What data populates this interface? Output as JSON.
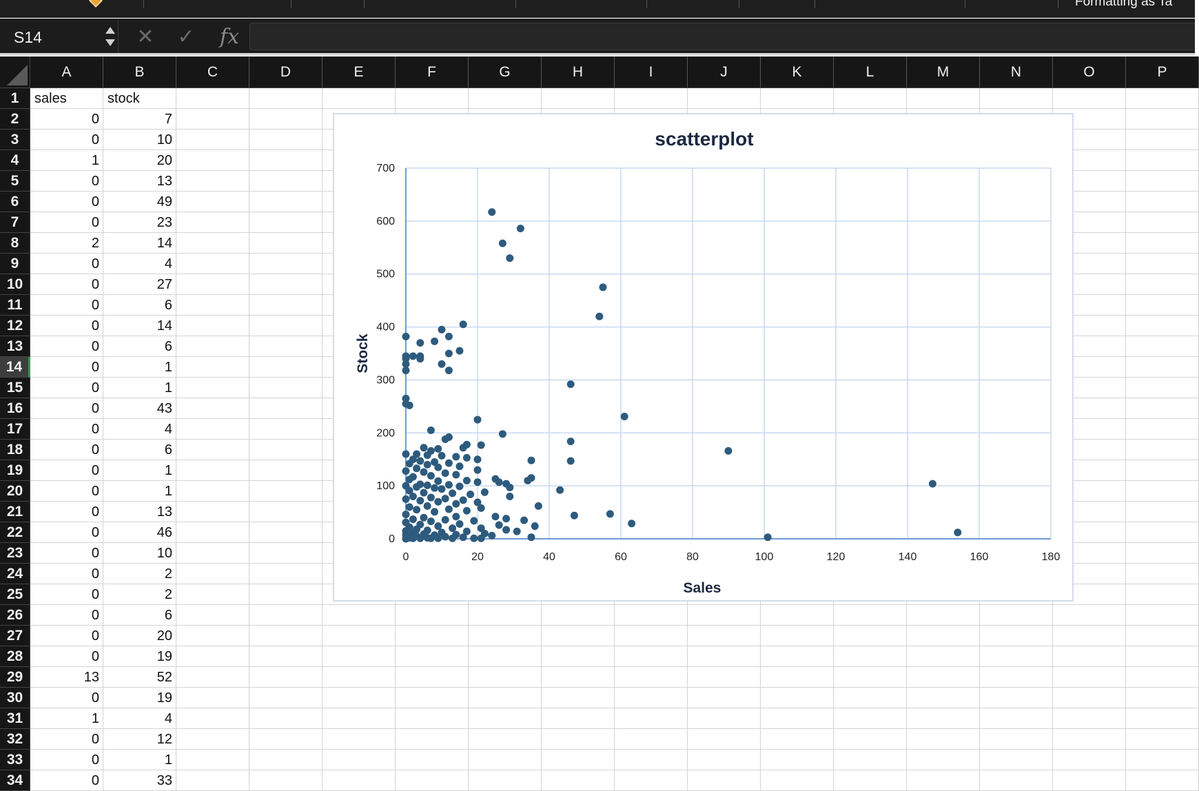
{
  "ribbon": {
    "partial_label": "Formatting  as Ta"
  },
  "formula_bar": {
    "name_box": "S14",
    "cancel_icon": "cancel-icon",
    "enter_icon": "checkmark-icon",
    "fx_label": "fx",
    "formula": ""
  },
  "sheet": {
    "columns": [
      "A",
      "B",
      "C",
      "D",
      "E",
      "F",
      "G",
      "H",
      "I",
      "J",
      "K",
      "L",
      "M",
      "N",
      "O",
      "P"
    ],
    "rows": [
      "1",
      "2",
      "3",
      "4",
      "5",
      "6",
      "7",
      "8",
      "9",
      "10",
      "11",
      "12",
      "13",
      "14",
      "15",
      "16",
      "17",
      "18",
      "19",
      "20",
      "21",
      "22",
      "23",
      "24",
      "25",
      "26",
      "27",
      "28",
      "29",
      "30",
      "31",
      "32",
      "33",
      "34"
    ],
    "selected_row": "14",
    "header_row": {
      "a": "sales",
      "b": "stock"
    },
    "data": [
      [
        "0",
        "7"
      ],
      [
        "0",
        "10"
      ],
      [
        "1",
        "20"
      ],
      [
        "0",
        "13"
      ],
      [
        "0",
        "49"
      ],
      [
        "0",
        "23"
      ],
      [
        "2",
        "14"
      ],
      [
        "0",
        "4"
      ],
      [
        "0",
        "27"
      ],
      [
        "0",
        "6"
      ],
      [
        "0",
        "14"
      ],
      [
        "0",
        "6"
      ],
      [
        "0",
        "1"
      ],
      [
        "0",
        "1"
      ],
      [
        "0",
        "43"
      ],
      [
        "0",
        "4"
      ],
      [
        "0",
        "6"
      ],
      [
        "0",
        "1"
      ],
      [
        "0",
        "1"
      ],
      [
        "0",
        "13"
      ],
      [
        "0",
        "46"
      ],
      [
        "0",
        "10"
      ],
      [
        "0",
        "2"
      ],
      [
        "0",
        "2"
      ],
      [
        "0",
        "6"
      ],
      [
        "0",
        "20"
      ],
      [
        "0",
        "19"
      ],
      [
        "13",
        "52"
      ],
      [
        "0",
        "19"
      ],
      [
        "1",
        "4"
      ],
      [
        "0",
        "12"
      ],
      [
        "0",
        "1"
      ],
      [
        "0",
        "33"
      ]
    ]
  },
  "chart_data": {
    "type": "scatter",
    "title": "scatterplot",
    "xlabel": "Sales",
    "ylabel": "Stock",
    "xlim": [
      0,
      180
    ],
    "ylim": [
      0,
      700
    ],
    "x_ticks": [
      "0",
      "20",
      "40",
      "60",
      "80",
      "100",
      "120",
      "140",
      "160",
      "180"
    ],
    "y_ticks": [
      "0",
      "100",
      "200",
      "300",
      "400",
      "500",
      "600",
      "700"
    ],
    "grid": true,
    "legend": "none",
    "marker_color": "#2e5b7d",
    "series": [
      {
        "points": [
          [
            24,
            617
          ],
          [
            32,
            586
          ],
          [
            27,
            558
          ],
          [
            29,
            530
          ],
          [
            55,
            475
          ],
          [
            54,
            420
          ],
          [
            16,
            405
          ],
          [
            10,
            395
          ],
          [
            12,
            382
          ],
          [
            0,
            382
          ],
          [
            8,
            373
          ],
          [
            4,
            370
          ],
          [
            15,
            355
          ],
          [
            12,
            350
          ],
          [
            0,
            345
          ],
          [
            2,
            345
          ],
          [
            4,
            345
          ],
          [
            0,
            340
          ],
          [
            4,
            340
          ],
          [
            10,
            330
          ],
          [
            0,
            330
          ],
          [
            12,
            318
          ],
          [
            0,
            318
          ],
          [
            46,
            292
          ],
          [
            0,
            265
          ],
          [
            0,
            255
          ],
          [
            1,
            252
          ],
          [
            61,
            231
          ],
          [
            20,
            225
          ],
          [
            7,
            205
          ],
          [
            27,
            198
          ],
          [
            12,
            192
          ],
          [
            11,
            188
          ],
          [
            46,
            184
          ],
          [
            17,
            178
          ],
          [
            21,
            177
          ],
          [
            16,
            172
          ],
          [
            5,
            172
          ],
          [
            9,
            170
          ],
          [
            7,
            166
          ],
          [
            90,
            166
          ],
          [
            0,
            160
          ],
          [
            3,
            160
          ],
          [
            6,
            158
          ],
          [
            10,
            157
          ],
          [
            14,
            155
          ],
          [
            17,
            153
          ],
          [
            2,
            150
          ],
          [
            20,
            150
          ],
          [
            35,
            148
          ],
          [
            46,
            147
          ],
          [
            4,
            147
          ],
          [
            8,
            145
          ],
          [
            12,
            143
          ],
          [
            1,
            142
          ],
          [
            6,
            140
          ],
          [
            15,
            137
          ],
          [
            9,
            135
          ],
          [
            3,
            133
          ],
          [
            20,
            130
          ],
          [
            0,
            128
          ],
          [
            5,
            126
          ],
          [
            11,
            124
          ],
          [
            14,
            121
          ],
          [
            7,
            119
          ],
          [
            2,
            117
          ],
          [
            35,
            115
          ],
          [
            25,
            113
          ],
          [
            1,
            112
          ],
          [
            34,
            110
          ],
          [
            17,
            110
          ],
          [
            9,
            109
          ],
          [
            26,
            107
          ],
          [
            20,
            107
          ],
          [
            147,
            104
          ],
          [
            28,
            104
          ],
          [
            4,
            103
          ],
          [
            12,
            102
          ],
          [
            6,
            101
          ],
          [
            0,
            100
          ],
          [
            15,
            99
          ],
          [
            3,
            98
          ],
          [
            29,
            97
          ],
          [
            8,
            96
          ],
          [
            10,
            94
          ],
          [
            43,
            92
          ],
          [
            1,
            91
          ],
          [
            22,
            88
          ],
          [
            5,
            87
          ],
          [
            13,
            86
          ],
          [
            18,
            84
          ],
          [
            29,
            80
          ],
          [
            2,
            80
          ],
          [
            7,
            78
          ],
          [
            11,
            76
          ],
          [
            0,
            75
          ],
          [
            16,
            73
          ],
          [
            4,
            72
          ],
          [
            9,
            70
          ],
          [
            20,
            69
          ],
          [
            14,
            66
          ],
          [
            37,
            62
          ],
          [
            6,
            62
          ],
          [
            1,
            60
          ],
          [
            21,
            58
          ],
          [
            12,
            56
          ],
          [
            3,
            55
          ],
          [
            17,
            53
          ],
          [
            8,
            51
          ],
          [
            57,
            47
          ],
          [
            0,
            46
          ],
          [
            47,
            44
          ],
          [
            25,
            42
          ],
          [
            14,
            42
          ],
          [
            5,
            40
          ],
          [
            28,
            38
          ],
          [
            2,
            37
          ],
          [
            11,
            36
          ],
          [
            33,
            35
          ],
          [
            19,
            34
          ],
          [
            7,
            33
          ],
          [
            0,
            31
          ],
          [
            63,
            29
          ],
          [
            15,
            28
          ],
          [
            4,
            27
          ],
          [
            26,
            26
          ],
          [
            36,
            24
          ],
          [
            9,
            24
          ],
          [
            1,
            22
          ],
          [
            21,
            20
          ],
          [
            13,
            20
          ],
          [
            3,
            18
          ],
          [
            28,
            17
          ],
          [
            6,
            16
          ],
          [
            0,
            15
          ],
          [
            31,
            14
          ],
          [
            17,
            14
          ],
          [
            154,
            12
          ],
          [
            10,
            12
          ],
          [
            2,
            11
          ],
          [
            22,
            10
          ],
          [
            5,
            9
          ],
          [
            14,
            8
          ],
          [
            0,
            8
          ],
          [
            8,
            7
          ],
          [
            24,
            6
          ],
          [
            3,
            5
          ],
          [
            11,
            4
          ],
          [
            35,
            3
          ],
          [
            101,
            3
          ],
          [
            16,
            3
          ],
          [
            1,
            2
          ],
          [
            6,
            2
          ],
          [
            19,
            1
          ],
          [
            0,
            1
          ],
          [
            4,
            1
          ],
          [
            9,
            1
          ],
          [
            13,
            1
          ],
          [
            21,
            1
          ],
          [
            2,
            1
          ],
          [
            7,
            1
          ],
          [
            0,
            0
          ]
        ]
      }
    ]
  }
}
